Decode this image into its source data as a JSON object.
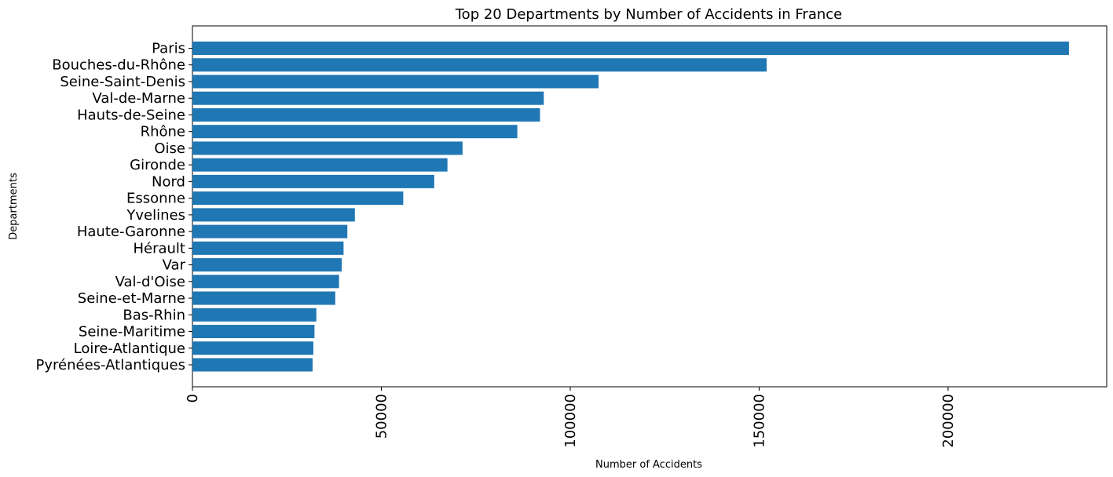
{
  "chart_data": {
    "type": "bar",
    "orientation": "horizontal",
    "title": "Top 20 Departments by Number of Accidents in France",
    "xlabel": "Number of Accidents",
    "ylabel": "Departments",
    "xlim": [
      0,
      242000
    ],
    "xticks": [
      0,
      50000,
      100000,
      150000,
      200000
    ],
    "xtick_labels": [
      "0",
      "50000",
      "100000",
      "150000",
      "200000"
    ],
    "xtick_rotation": 90,
    "bar_color": "#1f77b4",
    "grid": false,
    "categories": [
      "Paris",
      "Bouches-du-Rhône",
      "Seine-Saint-Denis",
      "Val-de-Marne",
      "Hauts-de-Seine",
      "Rhône",
      "Oise",
      "Gironde",
      "Nord",
      "Essonne",
      "Yvelines",
      "Haute-Garonne",
      "Hérault",
      "Var",
      "Val-d'Oise",
      "Seine-et-Marne",
      "Bas-Rhin",
      "Seine-Maritime",
      "Loire-Atlantique",
      "Pyrénées-Atlantiques"
    ],
    "values": [
      232000,
      152000,
      107500,
      93000,
      92000,
      86000,
      71500,
      67500,
      64000,
      55800,
      43000,
      41000,
      40000,
      39500,
      38800,
      37800,
      32800,
      32300,
      32000,
      31800
    ]
  }
}
